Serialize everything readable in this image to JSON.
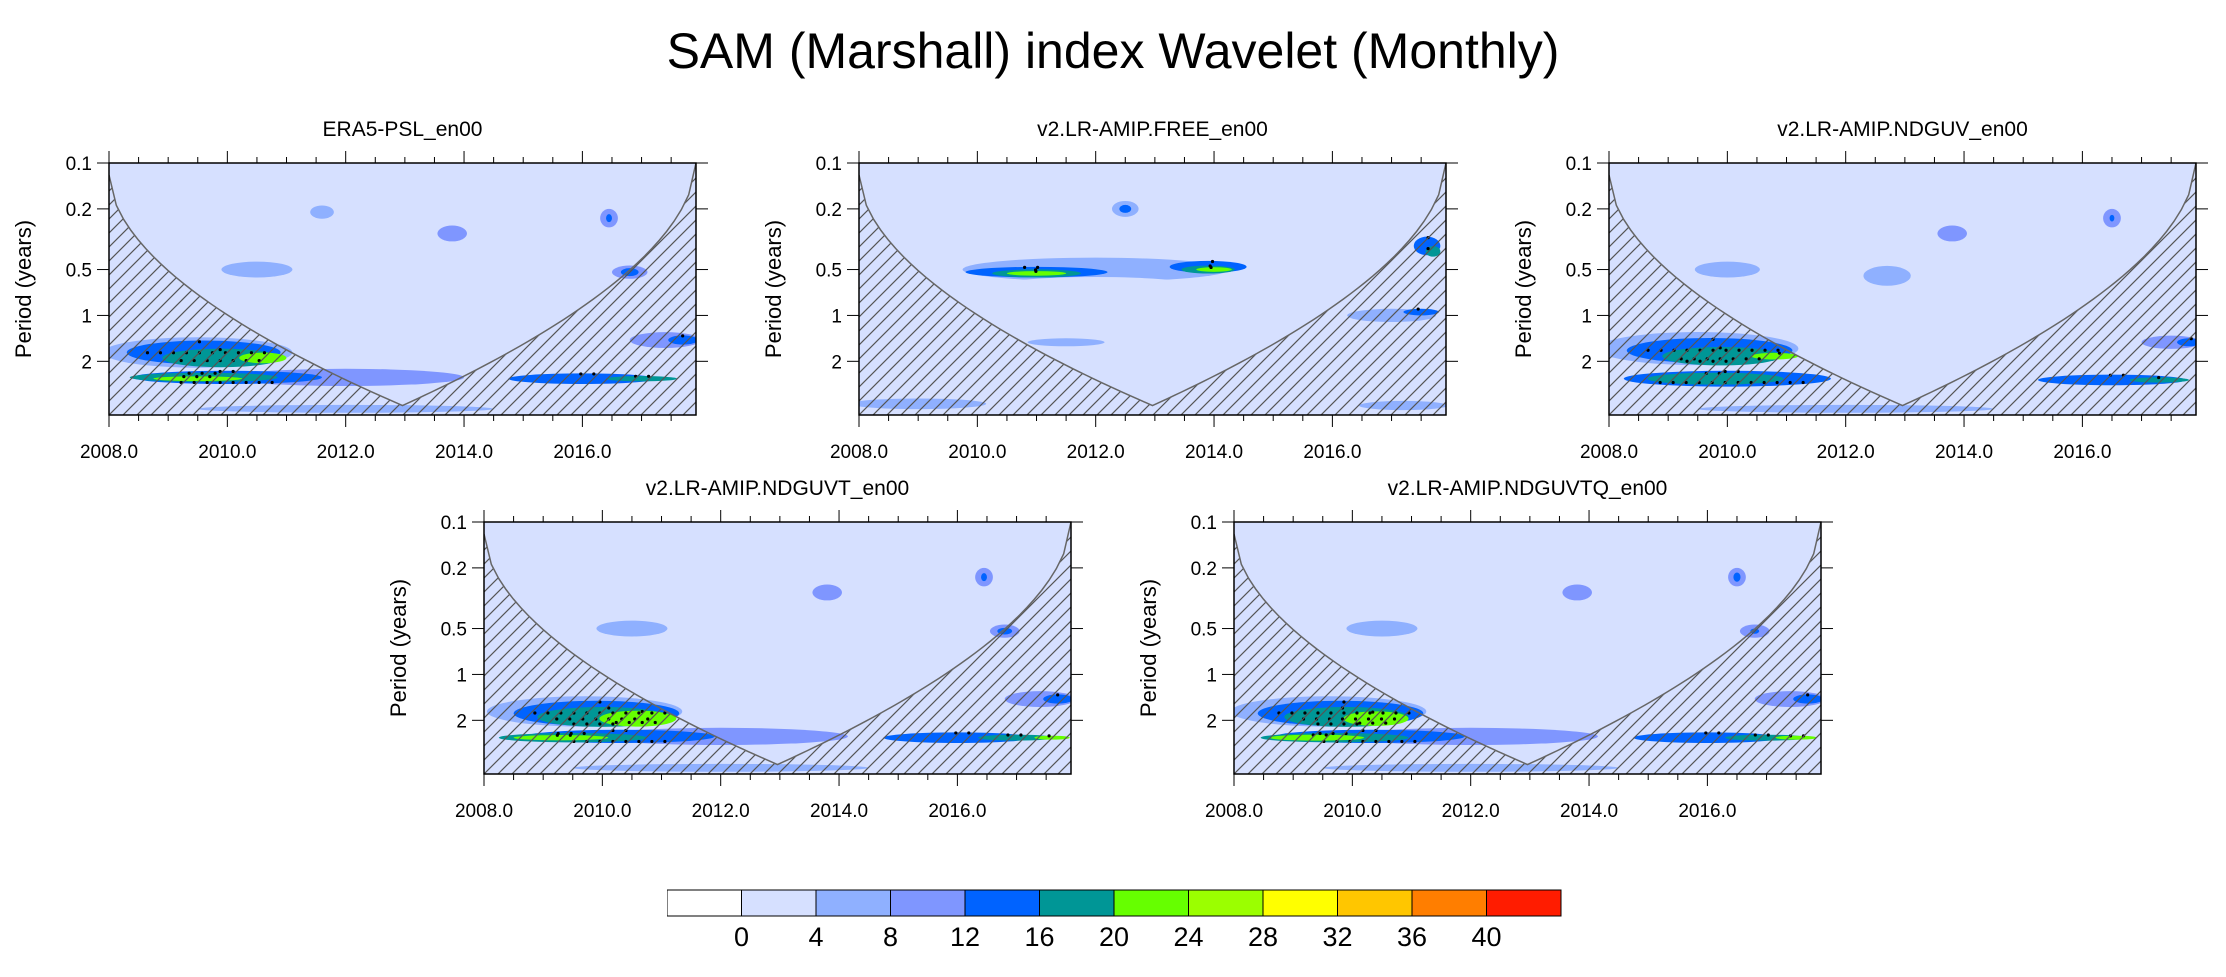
{
  "title": "SAM (Marshall) index Wavelet (Monthly)",
  "chart_data": {
    "type": "heatmap",
    "title": "SAM (Marshall) index Wavelet (Monthly)",
    "xlim": [
      2008.0,
      2017.92
    ],
    "ylim_period_years": [
      0.1,
      4.5
    ],
    "yscale": "log",
    "xticks_major": [
      2008.0,
      2010.0,
      2012.0,
      2014.0,
      2016.0
    ],
    "xtick_labels": [
      "2008.0",
      "2010.0",
      "2012.0",
      "2014.0",
      "2016.0"
    ],
    "yticks": [
      0.1,
      0.2,
      0.5,
      1,
      2
    ],
    "ytick_labels": [
      "0.1",
      "0.2",
      "0.5",
      "1",
      "2"
    ],
    "ylabel": "Period (years)",
    "colorbar": {
      "levels": [
        0,
        4,
        8,
        12,
        16,
        20,
        24,
        28,
        32,
        36,
        40
      ],
      "labels": [
        "0",
        "4",
        "8",
        "12",
        "16",
        "20",
        "24",
        "28",
        "32",
        "36",
        "40"
      ],
      "colors": [
        "#ffffff",
        "#d6e0ff",
        "#8fb0ff",
        "#7f96ff",
        "#0063ff",
        "#009696",
        "#66ff00",
        "#9bff00",
        "#ffff00",
        "#ffc600",
        "#ff7e00",
        "#ff1c00"
      ]
    },
    "cone_of_influence": {
      "apex_year": 2012.96,
      "apex_period": 3.9,
      "edge_period": 0.12
    },
    "panels": [
      {
        "title": "ERA5-PSL_en00",
        "blobs": [
          [
            2012.0,
            0.21,
            1.2,
            0.25,
            1
          ],
          [
            2013.9,
            0.28,
            0.8,
            0.25,
            1
          ],
          [
            2016.6,
            0.23,
            0.5,
            0.2,
            1
          ],
          [
            2012.0,
            0.55,
            4.2,
            0.35,
            1
          ],
          [
            2016.8,
            0.52,
            1.3,
            0.2,
            1
          ],
          [
            2011.6,
            0.21,
            0.4,
            0.1,
            2
          ],
          [
            2013.8,
            0.29,
            0.5,
            0.12,
            3
          ],
          [
            2016.45,
            0.23,
            0.3,
            0.14,
            3
          ],
          [
            2016.45,
            0.23,
            0.1,
            0.06,
            4
          ],
          [
            2016.8,
            0.52,
            0.6,
            0.1,
            3
          ],
          [
            2016.8,
            0.52,
            0.3,
            0.06,
            4
          ],
          [
            2010.5,
            0.5,
            1.2,
            0.12,
            2
          ],
          [
            2009.5,
            1.75,
            3.2,
            0.23,
            2
          ],
          [
            2009.6,
            1.75,
            2.6,
            0.18,
            4
          ],
          [
            2009.9,
            1.9,
            2.0,
            0.14,
            5
          ],
          [
            2010.6,
            1.9,
            0.8,
            0.08,
            6
          ],
          [
            2012.0,
            2.55,
            4.0,
            0.13,
            3
          ],
          [
            2010.0,
            2.55,
            3.2,
            0.1,
            4
          ],
          [
            2009.6,
            2.55,
            2.5,
            0.07,
            5
          ],
          [
            2009.5,
            2.6,
            1.5,
            0.035,
            6
          ],
          [
            2016.0,
            2.6,
            2.5,
            0.08,
            4
          ],
          [
            2017.0,
            2.6,
            1.2,
            0.04,
            5
          ],
          [
            2017.4,
            1.45,
            1.2,
            0.12,
            3
          ],
          [
            2017.7,
            1.45,
            0.5,
            0.07,
            4
          ],
          [
            2012.0,
            4.1,
            5.0,
            0.06,
            2
          ]
        ]
      },
      {
        "title": "v2.LR-AMIP.FREE_en00",
        "blobs": [
          [
            2012.5,
            0.2,
            0.45,
            0.12,
            2
          ],
          [
            2012.5,
            0.2,
            0.2,
            0.06,
            4
          ],
          [
            2012.0,
            0.5,
            4.5,
            0.18,
            2
          ],
          [
            2011.0,
            0.52,
            2.4,
            0.08,
            4
          ],
          [
            2011.0,
            0.53,
            1.5,
            0.06,
            5
          ],
          [
            2011.0,
            0.53,
            1.0,
            0.035,
            6
          ],
          [
            2013.9,
            0.48,
            1.3,
            0.09,
            4
          ],
          [
            2013.9,
            0.5,
            0.9,
            0.06,
            5
          ],
          [
            2014.0,
            0.5,
            0.6,
            0.035,
            6
          ],
          [
            2012.0,
            0.65,
            3.5,
            0.15,
            1
          ],
          [
            2011.5,
            1.5,
            1.3,
            0.06,
            2
          ],
          [
            2017.0,
            1.0,
            1.5,
            0.1,
            2
          ],
          [
            2017.5,
            0.95,
            0.6,
            0.05,
            4
          ],
          [
            2017.6,
            0.35,
            0.45,
            0.14,
            4
          ],
          [
            2017.7,
            0.38,
            0.25,
            0.08,
            5
          ],
          [
            2009.0,
            3.8,
            2.3,
            0.08,
            2
          ],
          [
            2017.2,
            3.9,
            1.5,
            0.07,
            2
          ]
        ]
      },
      {
        "title": "v2.LR-AMIP.NDGUV_en00",
        "blobs": [
          [
            2012.0,
            0.23,
            1.1,
            0.22,
            1
          ],
          [
            2013.9,
            0.28,
            0.9,
            0.27,
            1
          ],
          [
            2016.6,
            0.23,
            0.55,
            0.2,
            1
          ],
          [
            2012.0,
            0.55,
            4.2,
            0.35,
            1
          ],
          [
            2016.8,
            0.52,
            1.3,
            0.2,
            1
          ],
          [
            2013.8,
            0.29,
            0.5,
            0.12,
            3
          ],
          [
            2016.5,
            0.23,
            0.3,
            0.14,
            3
          ],
          [
            2016.5,
            0.23,
            0.08,
            0.05,
            4
          ],
          [
            2010.0,
            0.5,
            1.1,
            0.12,
            2
          ],
          [
            2012.7,
            0.55,
            0.8,
            0.15,
            2
          ],
          [
            2009.5,
            1.65,
            3.4,
            0.25,
            2
          ],
          [
            2009.7,
            1.7,
            2.8,
            0.19,
            4
          ],
          [
            2009.9,
            1.85,
            2.0,
            0.14,
            5
          ],
          [
            2010.8,
            1.85,
            0.8,
            0.05,
            6
          ],
          [
            2010.0,
            2.6,
            3.5,
            0.12,
            4
          ],
          [
            2009.8,
            2.6,
            2.3,
            0.09,
            5
          ],
          [
            2016.5,
            2.65,
            2.5,
            0.08,
            4
          ],
          [
            2017.3,
            2.65,
            1.0,
            0.04,
            5
          ],
          [
            2017.5,
            1.5,
            1.0,
            0.1,
            3
          ],
          [
            2017.8,
            1.5,
            0.4,
            0.06,
            4
          ],
          [
            2012.0,
            4.1,
            5.0,
            0.06,
            2
          ]
        ]
      },
      {
        "title": "v2.LR-AMIP.NDGUVT_en00",
        "blobs": [
          [
            2012.0,
            0.21,
            1.2,
            0.25,
            1
          ],
          [
            2013.9,
            0.28,
            0.8,
            0.25,
            1
          ],
          [
            2016.6,
            0.23,
            0.5,
            0.2,
            1
          ],
          [
            2012.0,
            0.55,
            4.2,
            0.35,
            1
          ],
          [
            2016.8,
            0.52,
            1.3,
            0.2,
            1
          ],
          [
            2013.8,
            0.29,
            0.5,
            0.12,
            3
          ],
          [
            2016.45,
            0.23,
            0.3,
            0.14,
            3
          ],
          [
            2016.45,
            0.23,
            0.1,
            0.06,
            4
          ],
          [
            2016.8,
            0.52,
            0.5,
            0.1,
            3
          ],
          [
            2016.8,
            0.52,
            0.25,
            0.05,
            4
          ],
          [
            2010.5,
            0.5,
            1.2,
            0.12,
            2
          ],
          [
            2009.7,
            1.75,
            3.3,
            0.23,
            2
          ],
          [
            2009.9,
            1.8,
            2.8,
            0.19,
            4
          ],
          [
            2010.0,
            1.9,
            2.2,
            0.15,
            5
          ],
          [
            2010.6,
            1.95,
            1.3,
            0.12,
            6
          ],
          [
            2012.0,
            2.55,
            4.3,
            0.13,
            3
          ],
          [
            2010.3,
            2.55,
            3.2,
            0.1,
            4
          ],
          [
            2009.5,
            2.6,
            2.5,
            0.07,
            5
          ],
          [
            2009.3,
            2.6,
            1.6,
            0.04,
            6
          ],
          [
            2016.0,
            2.6,
            2.5,
            0.08,
            4
          ],
          [
            2017.0,
            2.6,
            1.3,
            0.045,
            5
          ],
          [
            2017.6,
            2.6,
            0.6,
            0.03,
            6
          ],
          [
            2017.4,
            1.45,
            1.2,
            0.12,
            3
          ],
          [
            2017.7,
            1.45,
            0.5,
            0.07,
            4
          ],
          [
            2012.0,
            4.1,
            5.0,
            0.06,
            2
          ]
        ]
      },
      {
        "title": "v2.LR-AMIP.NDGUVTQ_en00",
        "blobs": [
          [
            2012.0,
            0.21,
            1.2,
            0.25,
            1
          ],
          [
            2013.9,
            0.28,
            0.8,
            0.25,
            1
          ],
          [
            2016.6,
            0.23,
            0.5,
            0.2,
            1
          ],
          [
            2012.0,
            0.55,
            4.2,
            0.35,
            1
          ],
          [
            2016.8,
            0.52,
            1.3,
            0.2,
            1
          ],
          [
            2013.8,
            0.29,
            0.5,
            0.12,
            3
          ],
          [
            2016.5,
            0.23,
            0.3,
            0.14,
            3
          ],
          [
            2016.5,
            0.23,
            0.12,
            0.07,
            4
          ],
          [
            2016.8,
            0.52,
            0.5,
            0.1,
            3
          ],
          [
            2016.8,
            0.52,
            0.15,
            0.04,
            4
          ],
          [
            2010.5,
            0.5,
            1.2,
            0.12,
            2
          ],
          [
            2009.6,
            1.75,
            3.3,
            0.23,
            2
          ],
          [
            2009.8,
            1.8,
            2.8,
            0.19,
            4
          ],
          [
            2009.9,
            1.9,
            2.1,
            0.15,
            5
          ],
          [
            2010.4,
            1.95,
            1.1,
            0.11,
            6
          ],
          [
            2012.0,
            2.55,
            4.3,
            0.13,
            3
          ],
          [
            2010.3,
            2.55,
            3.2,
            0.1,
            4
          ],
          [
            2009.7,
            2.6,
            2.5,
            0.07,
            5
          ],
          [
            2009.4,
            2.6,
            1.6,
            0.045,
            6
          ],
          [
            2016.0,
            2.6,
            2.5,
            0.08,
            4
          ],
          [
            2017.0,
            2.6,
            1.4,
            0.045,
            5
          ],
          [
            2017.5,
            2.6,
            0.7,
            0.03,
            6
          ],
          [
            2017.4,
            1.45,
            1.2,
            0.12,
            3
          ],
          [
            2017.7,
            1.45,
            0.5,
            0.07,
            4
          ],
          [
            2012.0,
            4.1,
            5.0,
            0.06,
            2
          ]
        ]
      }
    ]
  }
}
